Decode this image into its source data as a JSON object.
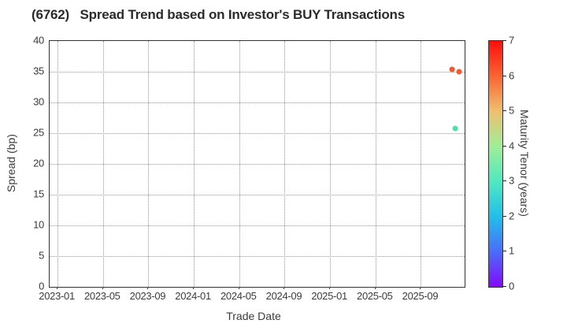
{
  "figure": {
    "background": "#ffffff",
    "axis_border_color": "#333333",
    "grid_color": "#949494",
    "tick_text_color": "#3b3b3b",
    "title_color": "#2b2b2b"
  },
  "chart_data": {
    "type": "scatter",
    "title": "(6762)   Spread Trend based on Investor's BUY Transactions",
    "xlabel": "Trade Date",
    "ylabel": "Spread (bp)",
    "grid": true,
    "legend_position": "none",
    "x_axis": {
      "tick_labels": [
        "2023-01",
        "2023-05",
        "2023-09",
        "2024-01",
        "2024-05",
        "2024-09",
        "2025-01",
        "2025-05",
        "2025-09"
      ],
      "tick_months_since_2023_01": [
        0,
        4,
        8,
        12,
        16,
        20,
        24,
        28,
        32
      ],
      "domain_months_since_2023_01": [
        -0.7,
        35.85
      ]
    },
    "y_axis": {
      "tick_labels": [
        "0",
        "5",
        "10",
        "15",
        "20",
        "25",
        "30",
        "35",
        "40"
      ],
      "ticks": [
        0,
        5,
        10,
        15,
        20,
        25,
        30,
        35,
        40
      ],
      "range": [
        0,
        40
      ]
    },
    "colorbar": {
      "label": "Maturity Tenor (years)",
      "range": [
        0,
        7
      ],
      "ticks": [
        0,
        1,
        2,
        3,
        4,
        5,
        6,
        7
      ],
      "tick_labels": [
        "0",
        "1",
        "2",
        "3",
        "4",
        "5",
        "6",
        "7"
      ],
      "colormap": "rainbow",
      "gradient_stops_bottom_to_top": [
        "#8508fc",
        "#4a6cf9",
        "#22bfea",
        "#4fe9c0",
        "#9fee97",
        "#eec06f",
        "#fa6433",
        "#fb0f0c"
      ]
    },
    "points": [
      {
        "trade_date": "2025-11",
        "x_months": 34.75,
        "spread_bp": 35.4,
        "maturity_tenor_years": 6.2,
        "color": "#f5592e"
      },
      {
        "trade_date": "2025-12",
        "x_months": 35.35,
        "spread_bp": 35.0,
        "maturity_tenor_years": 6.1,
        "color": "#f5592e"
      },
      {
        "trade_date": "2025-12",
        "x_months": 35.05,
        "spread_bp": 25.8,
        "maturity_tenor_years": 3.0,
        "color": "#4ce0ad"
      }
    ]
  }
}
